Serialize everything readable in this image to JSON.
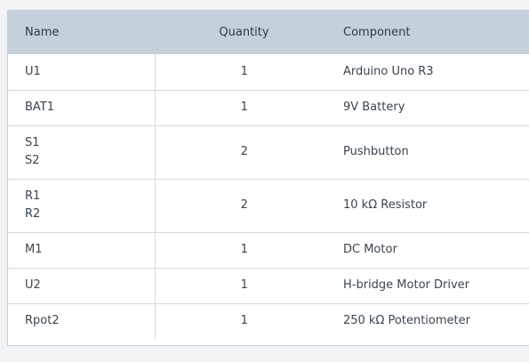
{
  "table": {
    "headers": {
      "name": "Name",
      "quantity": "Quantity",
      "component": "Component"
    },
    "rows": [
      {
        "names": [
          "U1"
        ],
        "quantity": "1",
        "component": "Arduino Uno R3"
      },
      {
        "names": [
          "BAT1"
        ],
        "quantity": "1",
        "component": "9V Battery"
      },
      {
        "names": [
          "S1",
          "S2"
        ],
        "quantity": "2",
        "component": "Pushbutton"
      },
      {
        "names": [
          "R1",
          "R2"
        ],
        "quantity": "2",
        "component": "10 kΩ Resistor"
      },
      {
        "names": [
          "M1"
        ],
        "quantity": "1",
        "component": "DC Motor"
      },
      {
        "names": [
          "U2"
        ],
        "quantity": "1",
        "component": "H-bridge Motor Driver"
      },
      {
        "names": [
          "Rpot2"
        ],
        "quantity": "1",
        "component": "250 kΩ Potentiometer"
      }
    ]
  },
  "colors": {
    "header_background": "#c5d0da",
    "page_background": "#f2f3f5",
    "row_divider": "#d4d9df"
  }
}
